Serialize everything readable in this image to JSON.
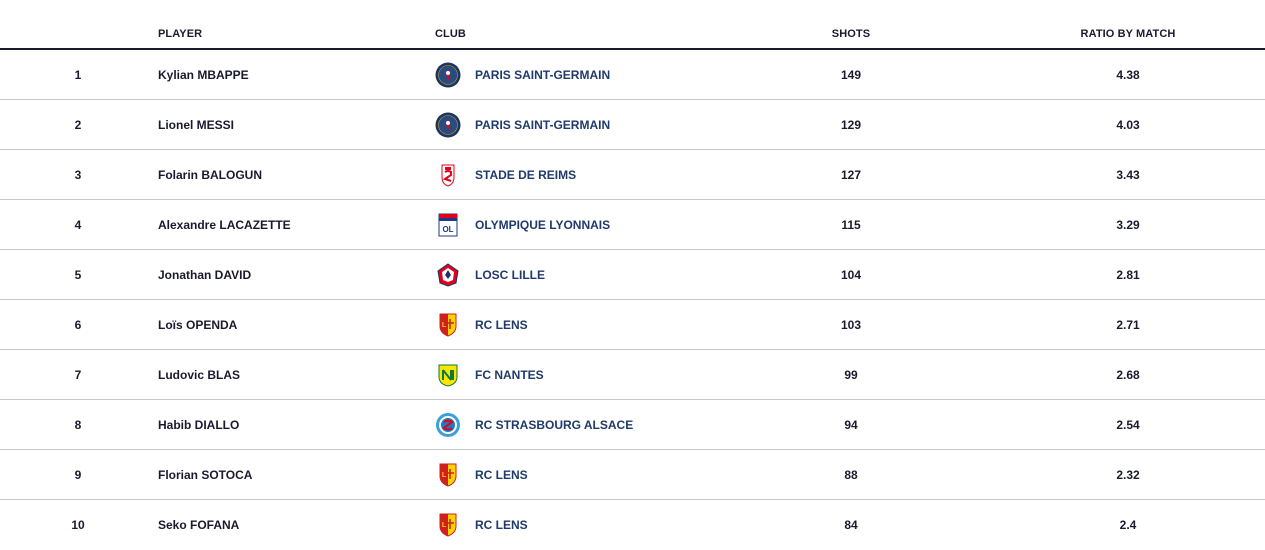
{
  "headers": {
    "player": "PLAYER",
    "club": "CLUB",
    "shots": "SHOTS",
    "ratio": "RATIO BY MATCH"
  },
  "rows": [
    {
      "rank": "1",
      "player": "Kylian MBAPPE",
      "club": "PARIS SAINT-GERMAIN",
      "logo": "psg-crest-icon",
      "shots": "149",
      "ratio": "4.38"
    },
    {
      "rank": "2",
      "player": "Lionel MESSI",
      "club": "PARIS SAINT-GERMAIN",
      "logo": "psg-crest-icon",
      "shots": "129",
      "ratio": "4.03"
    },
    {
      "rank": "3",
      "player": "Folarin BALOGUN",
      "club": "STADE DE REIMS",
      "logo": "reims-crest-icon",
      "shots": "127",
      "ratio": "3.43"
    },
    {
      "rank": "4",
      "player": "Alexandre LACAZETTE",
      "club": "OLYMPIQUE LYONNAIS",
      "logo": "lyon-crest-icon",
      "shots": "115",
      "ratio": "3.29"
    },
    {
      "rank": "5",
      "player": "Jonathan DAVID",
      "club": "LOSC LILLE",
      "logo": "lille-crest-icon",
      "shots": "104",
      "ratio": "2.81"
    },
    {
      "rank": "6",
      "player": "Loïs OPENDA",
      "club": "RC LENS",
      "logo": "lens-crest-icon",
      "shots": "103",
      "ratio": "2.71"
    },
    {
      "rank": "7",
      "player": "Ludovic BLAS",
      "club": "FC NANTES",
      "logo": "nantes-crest-icon",
      "shots": "99",
      "ratio": "2.68"
    },
    {
      "rank": "8",
      "player": "Habib DIALLO",
      "club": "RC STRASBOURG ALSACE",
      "logo": "strasbourg-crest-icon",
      "shots": "94",
      "ratio": "2.54"
    },
    {
      "rank": "9",
      "player": "Florian SOTOCA",
      "club": "RC LENS",
      "logo": "lens-crest-icon",
      "shots": "88",
      "ratio": "2.32"
    },
    {
      "rank": "10",
      "player": "Seko FOFANA",
      "club": "RC LENS",
      "logo": "lens-crest-icon",
      "shots": "84",
      "ratio": "2.4"
    }
  ]
}
